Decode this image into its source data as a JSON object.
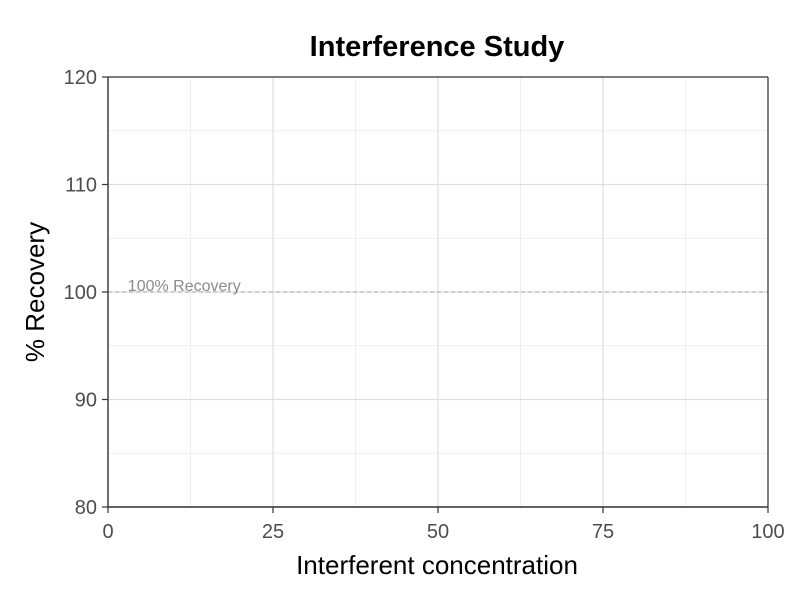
{
  "chart_data": {
    "type": "scatter",
    "title": "Interference Study",
    "xlabel": "Interferent concentration",
    "ylabel": "% Recovery",
    "xlim": [
      0,
      100
    ],
    "ylim": [
      80,
      120
    ],
    "x_ticks": [
      0,
      25,
      50,
      75,
      100
    ],
    "x_tick_labels": [
      "0",
      "25",
      "50",
      "75",
      "100"
    ],
    "y_ticks": [
      80,
      90,
      100,
      110,
      120
    ],
    "y_tick_labels": [
      "80",
      "90",
      "100",
      "110",
      "120"
    ],
    "x_minor": [
      12.5,
      37.5,
      62.5,
      87.5
    ],
    "y_minor": [
      85,
      95,
      105,
      115
    ],
    "grid": true,
    "series": [],
    "reference_line": {
      "y": 100,
      "label": "100% Recovery",
      "label_x": 3,
      "style": "dashed"
    },
    "colors": {
      "grid": "#ebebeb",
      "axis": "#333333",
      "reference": "#a6a6a6",
      "tick_text": "#4d4d4d"
    }
  }
}
